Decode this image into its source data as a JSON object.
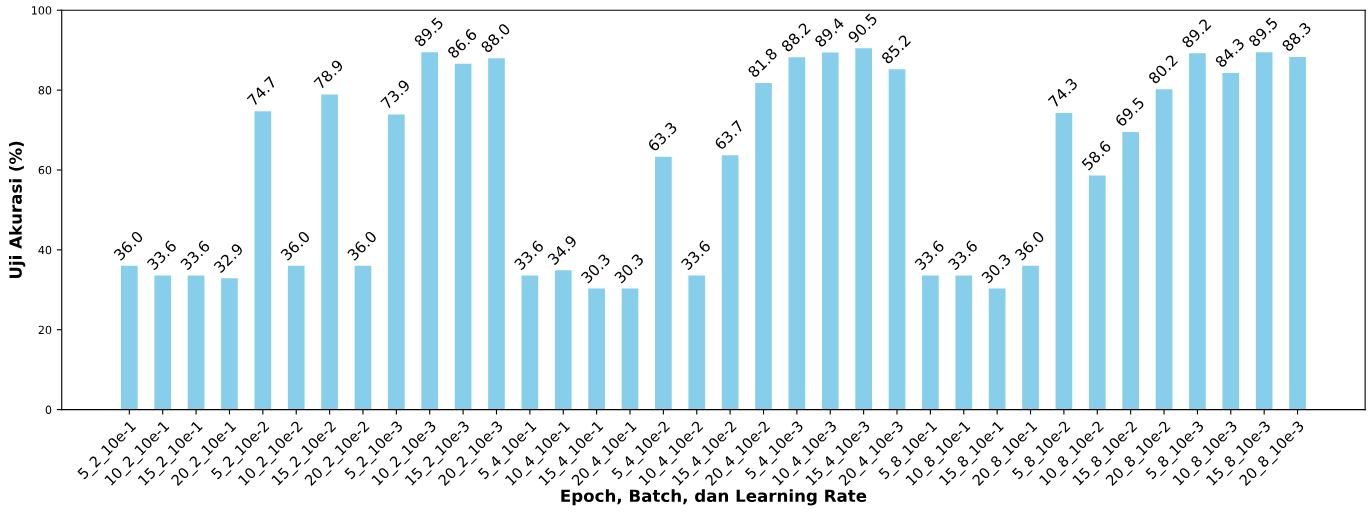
{
  "chart_data": {
    "type": "bar",
    "xlabel": "Epoch, Batch, dan Learning Rate",
    "ylabel": "Uji Akurasi (%)",
    "categories": [
      "5_2_10e-1",
      "10_2_10e-1",
      "15_2_10e-1",
      "20_2_10e-1",
      "5_2_10e-2",
      "10_2_10e-2",
      "15_2_10e-2",
      "20_2_10e-2",
      "5_2_10e-3",
      "10_2_10e-3",
      "15_2_10e-3",
      "20_2_10e-3",
      "5_4_10e-1",
      "10_4_10e-1",
      "15_4_10e-1",
      "20_4_10e-1",
      "5_4_10e-2",
      "10_4_10e-2",
      "15_4_10e-2",
      "20_4_10e-2",
      "5_4_10e-3",
      "10_4_10e-3",
      "15_4_10e-3",
      "20_4_10e-3",
      "5_8_10e-1",
      "10_8_10e-1",
      "15_8_10e-1",
      "20_8_10e-1",
      "5_8_10e-2",
      "10_8_10e-2",
      "15_8_10e-2",
      "20_8_10e-2",
      "5_8_10e-3",
      "10_8_10e-3",
      "15_8_10e-3",
      "20_8_10e-3"
    ],
    "values": [
      36.0,
      33.6,
      33.6,
      32.9,
      74.7,
      36.0,
      78.9,
      36.0,
      73.9,
      89.5,
      86.6,
      88.0,
      33.6,
      34.9,
      30.3,
      30.3,
      63.3,
      33.6,
      63.7,
      81.8,
      88.2,
      89.4,
      90.5,
      85.2,
      33.6,
      33.6,
      30.3,
      36.0,
      74.3,
      58.6,
      69.5,
      80.2,
      89.2,
      84.3,
      89.5,
      88.3
    ],
    "value_labels": [
      "36.0",
      "33.6",
      "33.6",
      "32.9",
      "74.7",
      "36.0",
      "78.9",
      "36.0",
      "73.9",
      "89.5",
      "86.6",
      "88.0",
      "33.6",
      "34.9",
      "30.3",
      "30.3",
      "63.3",
      "33.6",
      "63.7",
      "81.8",
      "88.2",
      "89.4",
      "90.5",
      "85.2",
      "33.6",
      "33.6",
      "30.3",
      "36.0",
      "74.3",
      "58.6",
      "69.5",
      "80.2",
      "89.2",
      "84.3",
      "89.5",
      "88.3"
    ],
    "color": "#87ceeb",
    "ylim": [
      0,
      100
    ],
    "yticks": [
      0,
      20,
      40,
      60,
      80,
      100
    ],
    "grid": false,
    "legend": false
  }
}
